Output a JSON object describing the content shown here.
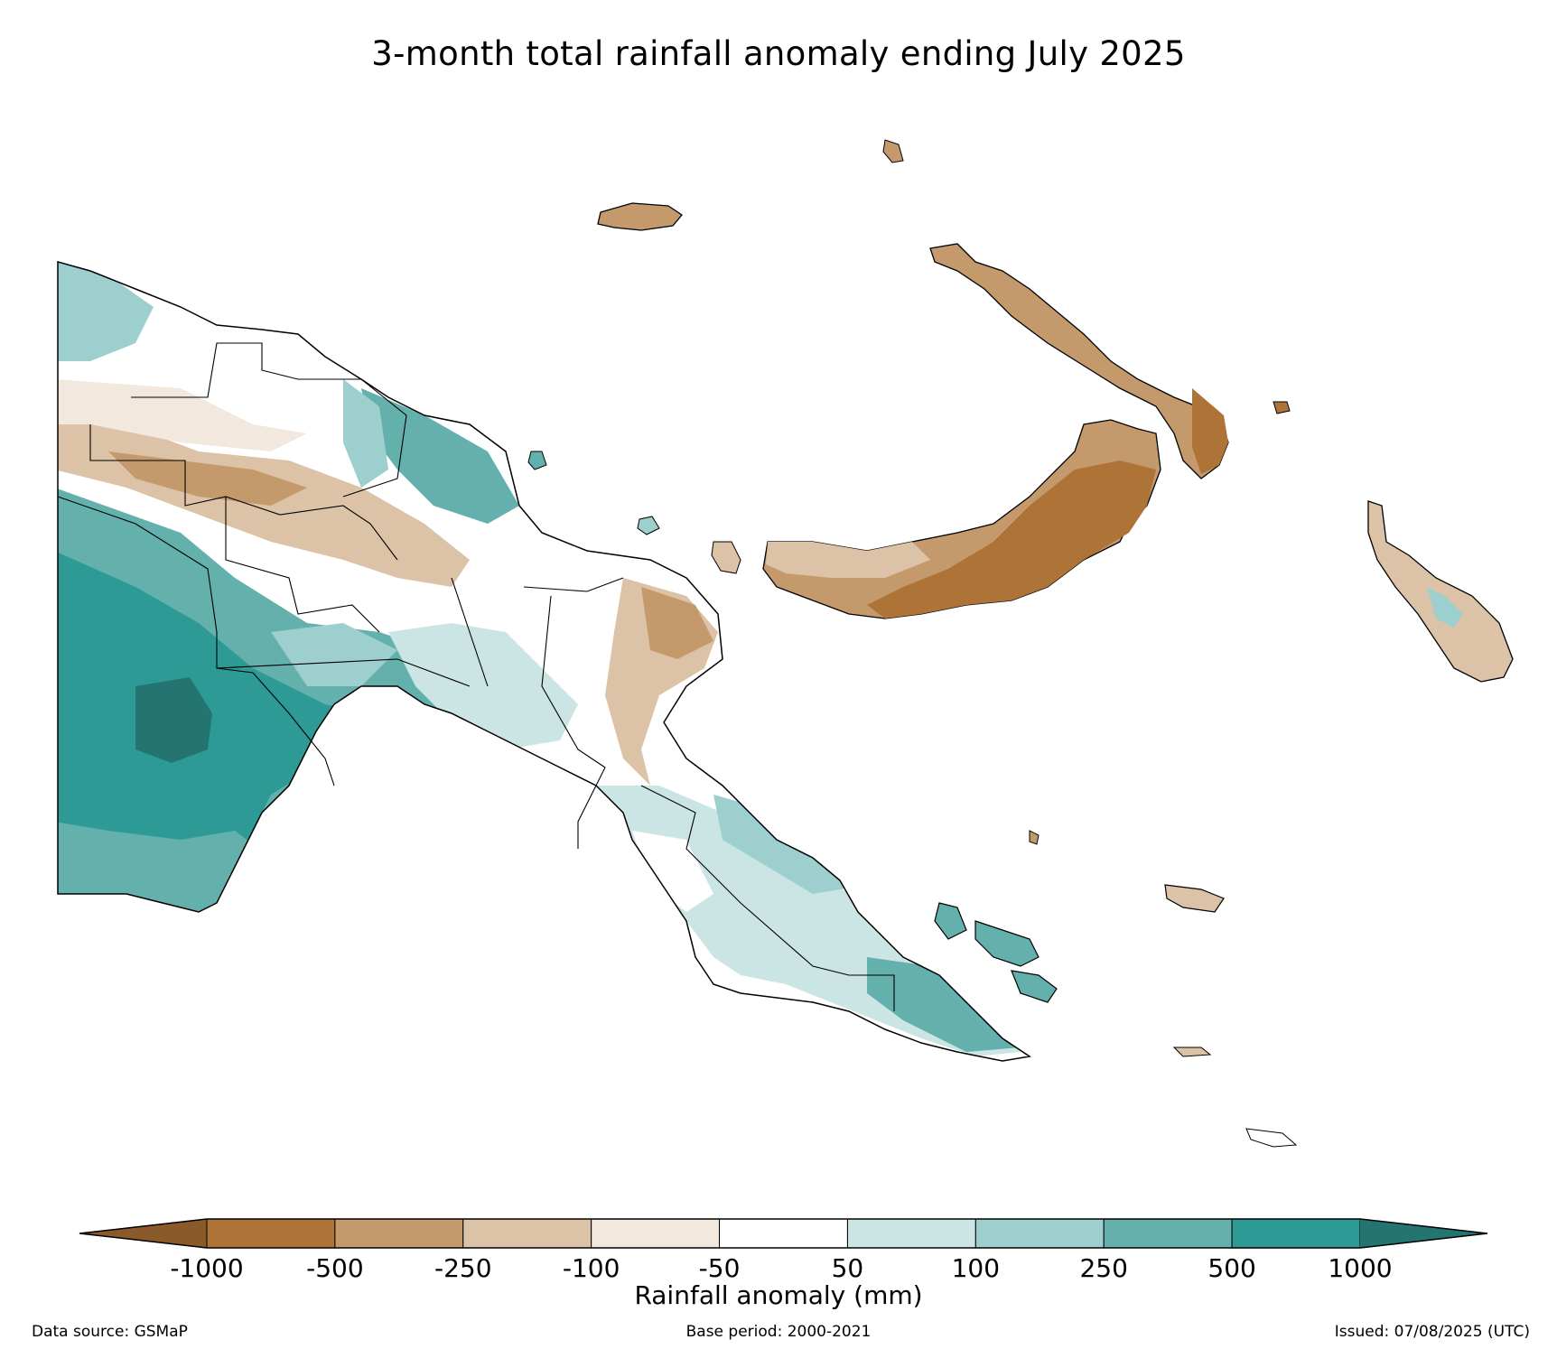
{
  "title": "3-month total rainfall anomaly ending July 2025",
  "legend": {
    "title": "Rainfall anomaly (mm)",
    "ticks": [
      "-1000",
      "-500",
      "-250",
      "-100",
      "-50",
      "50",
      "100",
      "250",
      "500",
      "1000"
    ],
    "colors": {
      "below_-1000": "#8a5a2b",
      "-1000_-500": "#ad7337",
      "-500_-250": "#c49a6c",
      "-250_-100": "#dcc2a6",
      "-100_-50": "#f2e8de",
      "-50_50": "#ffffff",
      "50_100": "#cbe5e4",
      "100_250": "#9ccfcd",
      "250_500": "#63b0ad",
      "500_1000": "#2e9a95",
      "above_1000": "#247572"
    }
  },
  "footer": {
    "data_source": "Data source: GSMaP",
    "base_period": "Base period: 2000-2021",
    "issued": "Issued: 07/08/2025 (UTC)"
  }
}
